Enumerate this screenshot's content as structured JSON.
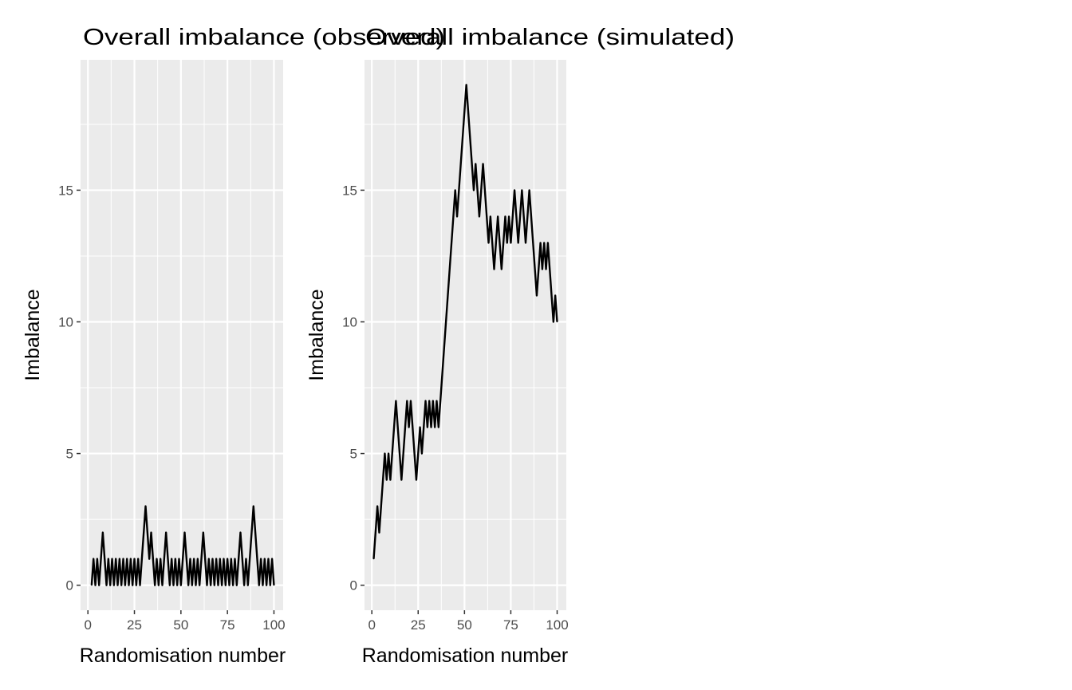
{
  "chart_data": [
    {
      "type": "line",
      "title": "Overall imbalance (observed)",
      "xlabel": "Randomisation number",
      "ylabel": "Imbalance",
      "xlim": [
        -3.95,
        104.95
      ],
      "ylim": [
        -0.95,
        19.95
      ],
      "xticks": [
        0,
        25,
        50,
        75,
        100
      ],
      "yticks": [
        0,
        5,
        10,
        15
      ],
      "grid": true,
      "line_color": "#000000",
      "background_color": "#ebebeb",
      "x_start": 2,
      "values": [
        0,
        1,
        0,
        1,
        0,
        1,
        2,
        1,
        0,
        1,
        0,
        1,
        0,
        1,
        0,
        1,
        0,
        1,
        0,
        1,
        0,
        1,
        0,
        1,
        0,
        1,
        0,
        1,
        2,
        3,
        2,
        1,
        2,
        1,
        0,
        1,
        0,
        1,
        0,
        1,
        2,
        1,
        0,
        1,
        0,
        1,
        0,
        1,
        0,
        1,
        2,
        1,
        0,
        1,
        0,
        1,
        0,
        1,
        0,
        1,
        2,
        1,
        0,
        1,
        0,
        1,
        0,
        1,
        0,
        1,
        0,
        1,
        0,
        1,
        0,
        1,
        0,
        1,
        0,
        1,
        2,
        1,
        0,
        1,
        0,
        1,
        2,
        3,
        2,
        1,
        0,
        1,
        0,
        1,
        0,
        1,
        0,
        1,
        0
      ]
    },
    {
      "type": "line",
      "title": "Overall imbalance (simulated)",
      "xlabel": "Randomisation number",
      "ylabel": "Imbalance",
      "xlim": [
        -3.95,
        104.95
      ],
      "ylim": [
        -0.95,
        19.95
      ],
      "xticks": [
        0,
        25,
        50,
        75,
        100
      ],
      "yticks": [
        0,
        5,
        10,
        15
      ],
      "grid": true,
      "line_color": "#000000",
      "background_color": "#ebebeb",
      "x_start": 1,
      "values": [
        1,
        2,
        3,
        2,
        3,
        4,
        5,
        4,
        5,
        4,
        5,
        6,
        7,
        6,
        5,
        4,
        5,
        6,
        7,
        6,
        7,
        6,
        5,
        4,
        5,
        6,
        5,
        6,
        7,
        6,
        7,
        6,
        7,
        6,
        7,
        6,
        7,
        8,
        9,
        10,
        11,
        12,
        13,
        14,
        15,
        14,
        15,
        16,
        17,
        18,
        19,
        18,
        17,
        16,
        15,
        16,
        15,
        14,
        15,
        16,
        15,
        14,
        13,
        14,
        13,
        12,
        13,
        14,
        13,
        12,
        13,
        14,
        13,
        14,
        13,
        14,
        15,
        14,
        13,
        14,
        15,
        14,
        13,
        14,
        15,
        14,
        13,
        12,
        11,
        12,
        13,
        12,
        13,
        12,
        13,
        12,
        11,
        10,
        11,
        10
      ]
    }
  ]
}
